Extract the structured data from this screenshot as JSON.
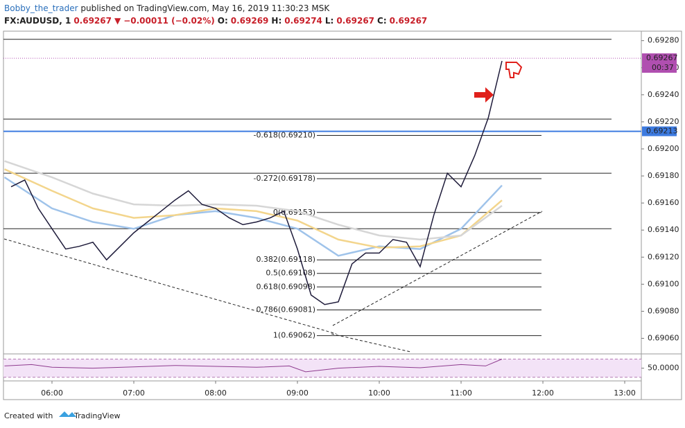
{
  "header": {
    "author": "Bobby_the_trader",
    "published": "published on TradingView.com, May 16, 2019 11:30:23 MSK",
    "quote": [
      "FX:AUDUSD, 1",
      "0.69267",
      "▼",
      "−0.00011 (−0.02%)",
      "O:",
      "0.69269",
      "H:",
      "0.69274",
      "L:",
      "0.69267",
      "C:",
      "0.69267"
    ]
  },
  "footer": {
    "prefix": "Created with",
    "brand": "TradingView"
  },
  "chart_data": {
    "type": "line",
    "x": [
      5.5,
      5.667,
      5.833,
      6.0,
      6.167,
      6.333,
      6.5,
      6.667,
      6.833,
      7.0,
      7.167,
      7.333,
      7.5,
      7.667,
      7.833,
      8.0,
      8.167,
      8.333,
      8.5,
      8.667,
      8.833,
      9.0,
      9.167,
      9.333,
      9.5,
      9.667,
      9.833,
      10.0,
      10.167,
      10.333,
      10.5,
      10.667,
      10.833,
      11.0,
      11.167,
      11.333,
      11.5
    ],
    "series": [
      {
        "name": "AUDUSD",
        "color": "#1e1b3a",
        "values": [
          0.69172,
          0.69177,
          0.69156,
          0.69141,
          0.69126,
          0.69128,
          0.69131,
          0.69118,
          0.69128,
          0.69138,
          0.69146,
          0.69154,
          0.69162,
          0.69169,
          0.69159,
          0.69156,
          0.69149,
          0.69144,
          0.69146,
          0.69149,
          0.69154,
          0.69126,
          0.69092,
          0.69085,
          0.69087,
          0.69115,
          0.69123,
          0.69123,
          0.69133,
          0.69131,
          0.69113,
          0.69151,
          0.69182,
          0.69172,
          0.69195,
          0.69223,
          0.69265
        ]
      }
    ],
    "ma_x": [
      5.42,
      6.0,
      6.5,
      7.0,
      7.5,
      8.0,
      8.5,
      9.0,
      9.5,
      10.0,
      10.5,
      11.0,
      11.5
    ],
    "moving_averages": [
      {
        "color": "#9fc3ea",
        "values": [
          0.69179,
          0.69156,
          0.69146,
          0.69141,
          0.69151,
          0.69154,
          0.69149,
          0.69141,
          0.69121,
          0.69128,
          0.69126,
          0.69141,
          0.69173
        ]
      },
      {
        "color": "#f3d58c",
        "values": [
          0.69185,
          0.69169,
          0.69156,
          0.69149,
          0.69151,
          0.69156,
          0.69154,
          0.69147,
          0.69133,
          0.69127,
          0.69128,
          0.69136,
          0.69162
        ]
      },
      {
        "color": "#d6d6d6",
        "values": [
          0.69191,
          0.69179,
          0.69167,
          0.69159,
          0.69158,
          0.69159,
          0.69158,
          0.69154,
          0.69144,
          0.69136,
          0.69133,
          0.69136,
          0.69158
        ]
      }
    ],
    "xlim": [
      5.407,
      13.203
    ],
    "xticks": [
      {
        "value": 6,
        "label": "06:00"
      },
      {
        "value": 7,
        "label": "07:00"
      },
      {
        "value": 8,
        "label": "08:00"
      },
      {
        "value": 9,
        "label": "09:00"
      },
      {
        "value": 10,
        "label": "10:00"
      },
      {
        "value": 11,
        "label": "11:00"
      },
      {
        "value": 12,
        "label": "12:00"
      },
      {
        "value": 13,
        "label": "13:00"
      }
    ],
    "ylim": [
      0.69049,
      0.69287
    ],
    "yticks": [
      {
        "value": 0.6906,
        "label": "0.69060"
      },
      {
        "value": 0.6908,
        "label": "0.69080"
      },
      {
        "value": 0.691,
        "label": "0.69100"
      },
      {
        "value": 0.6912,
        "label": "0.69120"
      },
      {
        "value": 0.6914,
        "label": "0.69140"
      },
      {
        "value": 0.6916,
        "label": "0.69160"
      },
      {
        "value": 0.6918,
        "label": "0.69180"
      },
      {
        "value": 0.692,
        "label": "0.69200"
      },
      {
        "value": 0.6922,
        "label": "0.69220"
      },
      {
        "value": 0.6924,
        "label": "0.69240"
      },
      {
        "value": 0.6926,
        "label": "0.69260"
      },
      {
        "value": 0.6928,
        "label": "0.69280"
      }
    ],
    "fib_levels": [
      {
        "label": "-0.618(0.69210)",
        "value": 0.6921
      },
      {
        "label": "-0.272(0.69178)",
        "value": 0.69178
      },
      {
        "label": "0(0.69153)",
        "value": 0.69153
      },
      {
        "label": "0.382(0.69118)",
        "value": 0.69118
      },
      {
        "label": "0.5(0.69108)",
        "value": 0.69108
      },
      {
        "label": "0.618(0.69098)",
        "value": 0.69098
      },
      {
        "label": "0.786(0.69081)",
        "value": 0.69081
      },
      {
        "label": "1(0.69062)",
        "value": 0.69062
      }
    ],
    "horizontal_lines": [
      0.69281,
      0.69222,
      0.69182,
      0.69141
    ],
    "support_level": 0.69213,
    "last_price": 0.69267,
    "countdown": "00:37",
    "rsi": {
      "x": [
        5.42,
        5.75,
        6.0,
        6.5,
        7.0,
        7.5,
        8.0,
        8.5,
        8.9,
        9.1,
        9.5,
        10.0,
        10.5,
        11.0,
        11.3,
        11.5
      ],
      "values": [
        55,
        58,
        52,
        50,
        53,
        56,
        54,
        52,
        55,
        42,
        50,
        54,
        51,
        58,
        55,
        70
      ],
      "ylim": [
        25,
        80
      ],
      "band": [
        30,
        70
      ],
      "yticks": [
        {
          "value": 50,
          "label": "50.0000"
        }
      ],
      "color": "#8e3b8e"
    }
  }
}
